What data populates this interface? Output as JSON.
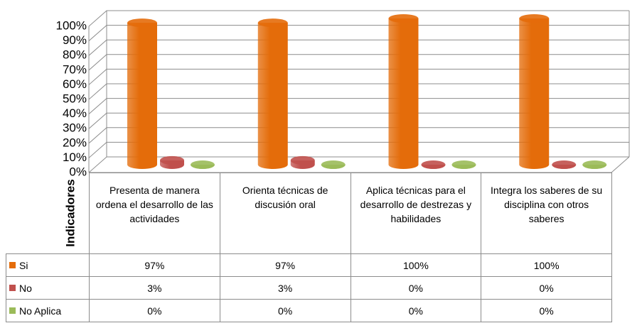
{
  "chart_data": {
    "type": "bar",
    "y_label": "Indicadores",
    "categories": [
      "Presenta de manera ordena el desarrollo de las actividades",
      "Orienta técnicas de discusión oral",
      "Aplica técnicas para el desarrollo de destrezas y habilidades",
      "Integra los saberes de su disciplina con otros saberes"
    ],
    "series": [
      {
        "name": "Si",
        "color": "#e46c0a",
        "values": [
          97,
          97,
          100,
          100
        ],
        "value_labels": [
          "97%",
          "97%",
          "100%",
          "100%"
        ]
      },
      {
        "name": "No",
        "color": "#c0504d",
        "values": [
          3,
          3,
          0,
          0
        ],
        "value_labels": [
          "3%",
          "3%",
          "0%",
          "0%"
        ]
      },
      {
        "name": "No Aplica",
        "color": "#9bbb59",
        "values": [
          0,
          0,
          0,
          0
        ],
        "value_labels": [
          "0%",
          "0%",
          "0%",
          "0%"
        ]
      }
    ],
    "ylim": [
      0,
      100
    ],
    "yticks": [
      {
        "value": 0,
        "label": "0%"
      },
      {
        "value": 10,
        "label": "10%"
      },
      {
        "value": 20,
        "label": "20%"
      },
      {
        "value": 30,
        "label": "30%"
      },
      {
        "value": 40,
        "label": "40%"
      },
      {
        "value": 50,
        "label": "50%"
      },
      {
        "value": 60,
        "label": "60%"
      },
      {
        "value": 70,
        "label": "70%"
      },
      {
        "value": 80,
        "label": "80%"
      },
      {
        "value": 90,
        "label": "90%"
      },
      {
        "value": 100,
        "label": "100%"
      }
    ],
    "grid": true
  }
}
